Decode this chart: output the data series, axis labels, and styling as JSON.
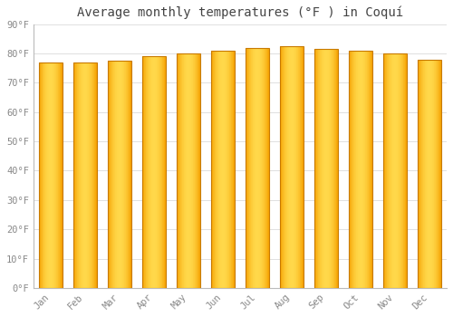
{
  "title": "Average monthly temperatures (°F ) in Coquí",
  "months": [
    "Jan",
    "Feb",
    "Mar",
    "Apr",
    "May",
    "Jun",
    "Jul",
    "Aug",
    "Sep",
    "Oct",
    "Nov",
    "Dec"
  ],
  "values": [
    77,
    77,
    77.5,
    79,
    80,
    81,
    82,
    82.5,
    81.5,
    81,
    80,
    78
  ],
  "bar_color_center": "#FFD84A",
  "bar_color_edge": "#F5A000",
  "bar_border_color": "#C87A00",
  "background_color": "#FFFFFF",
  "grid_color": "#E0E0E0",
  "ylim": [
    0,
    90
  ],
  "yticks": [
    0,
    10,
    20,
    30,
    40,
    50,
    60,
    70,
    80,
    90
  ],
  "ytick_labels": [
    "0°F",
    "10°F",
    "20°F",
    "30°F",
    "40°F",
    "50°F",
    "60°F",
    "70°F",
    "80°F",
    "90°F"
  ],
  "title_fontsize": 10,
  "tick_fontsize": 7.5,
  "font_family": "monospace",
  "tick_color": "#888888",
  "spine_color": "#BBBBBB",
  "bar_width": 0.7,
  "n_gradient_steps": 40
}
